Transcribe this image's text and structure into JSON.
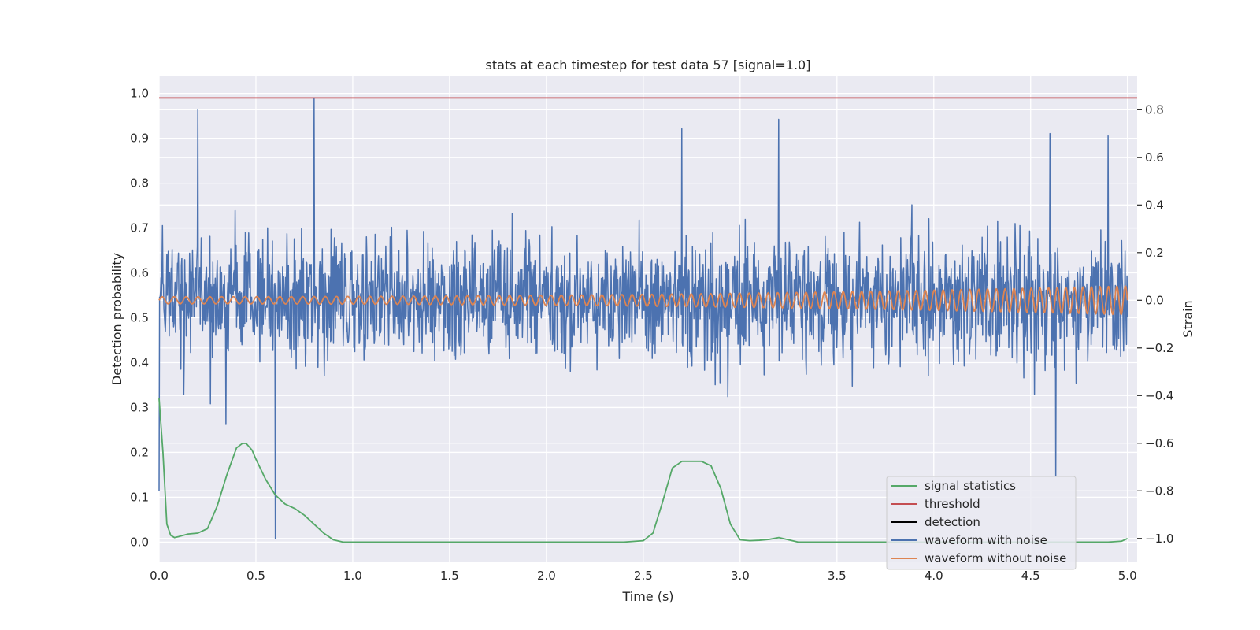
{
  "chart_data": {
    "type": "line",
    "title": "stats at each timestep for test data 57 [signal=1.0]",
    "xlabel": "Time (s)",
    "ylabel": "Detection probability",
    "y2label": "Strain",
    "xlim": [
      0,
      5.05
    ],
    "ylim": [
      -0.045,
      1.038
    ],
    "y2lim": [
      -1.1,
      0.94
    ],
    "x_ticks": [
      "0.0",
      "0.5",
      "1.0",
      "1.5",
      "2.0",
      "2.5",
      "3.0",
      "3.5",
      "4.0",
      "4.5",
      "5.0"
    ],
    "y_ticks": [
      "0.0",
      "0.1",
      "0.2",
      "0.3",
      "0.4",
      "0.5",
      "0.6",
      "0.7",
      "0.8",
      "0.9",
      "1.0"
    ],
    "y2_ticks": [
      "−1.0",
      "−0.8",
      "−0.6",
      "−0.4",
      "−0.2",
      "0.0",
      "0.2",
      "0.4",
      "0.6",
      "0.8"
    ],
    "grid": true,
    "legend_position": "lower-right",
    "colors": {
      "background": "#eaeaf2",
      "grid": "#ffffff",
      "signal_statistics": "#55a868",
      "threshold": "#c44e52",
      "detection": "#000000",
      "waveform_noise": "#4c72b0",
      "waveform_clean": "#dd8452"
    },
    "series": [
      {
        "name": "signal statistics",
        "axis": "left",
        "x": [
          0.0,
          0.02,
          0.04,
          0.06,
          0.08,
          0.1,
          0.15,
          0.2,
          0.25,
          0.3,
          0.35,
          0.4,
          0.43,
          0.45,
          0.48,
          0.5,
          0.55,
          0.6,
          0.65,
          0.7,
          0.75,
          0.8,
          0.85,
          0.9,
          0.95,
          1.0,
          1.5,
          2.0,
          2.4,
          2.5,
          2.55,
          2.6,
          2.65,
          2.7,
          2.75,
          2.8,
          2.85,
          2.9,
          2.95,
          3.0,
          3.05,
          3.1,
          3.15,
          3.2,
          3.25,
          3.3,
          3.5,
          4.0,
          4.5,
          4.9,
          4.97,
          5.0
        ],
        "y": [
          0.32,
          0.2,
          0.04,
          0.015,
          0.01,
          0.012,
          0.018,
          0.02,
          0.03,
          0.08,
          0.15,
          0.21,
          0.22,
          0.22,
          0.205,
          0.185,
          0.14,
          0.105,
          0.085,
          0.075,
          0.06,
          0.04,
          0.02,
          0.005,
          0.0,
          0.0,
          0.0,
          0.0,
          0.0,
          0.003,
          0.02,
          0.09,
          0.165,
          0.18,
          0.18,
          0.18,
          0.17,
          0.12,
          0.04,
          0.005,
          0.003,
          0.004,
          0.006,
          0.01,
          0.005,
          0.0,
          0.0,
          0.0,
          0.0,
          0.0,
          0.002,
          0.008
        ]
      },
      {
        "name": "threshold",
        "axis": "left",
        "x": [
          0.0,
          5.05
        ],
        "y": [
          0.99,
          0.99
        ]
      },
      {
        "name": "detection",
        "axis": "left",
        "x": [],
        "y": []
      },
      {
        "name": "waveform with noise",
        "axis": "right",
        "sample_count": 2000,
        "t_end": 5.0,
        "amplitude_std": 0.13,
        "spikes": [
          [
            0.8,
            0.85
          ],
          [
            0.6,
            -1.0
          ],
          [
            0.2,
            0.8
          ],
          [
            0.0,
            -0.8
          ],
          [
            2.7,
            0.72
          ],
          [
            3.2,
            0.76
          ],
          [
            4.63,
            -0.74
          ],
          [
            4.9,
            0.69
          ],
          [
            4.6,
            0.7
          ]
        ]
      },
      {
        "name": "waveform without noise",
        "axis": "right",
        "t_end": 5.0,
        "chirp": {
          "f0": 16,
          "f1": 23,
          "a0": 0.015,
          "a1": 0.06
        }
      }
    ],
    "legend": [
      "signal statistics",
      "threshold",
      "detection",
      "waveform with noise",
      "waveform without noise"
    ]
  }
}
